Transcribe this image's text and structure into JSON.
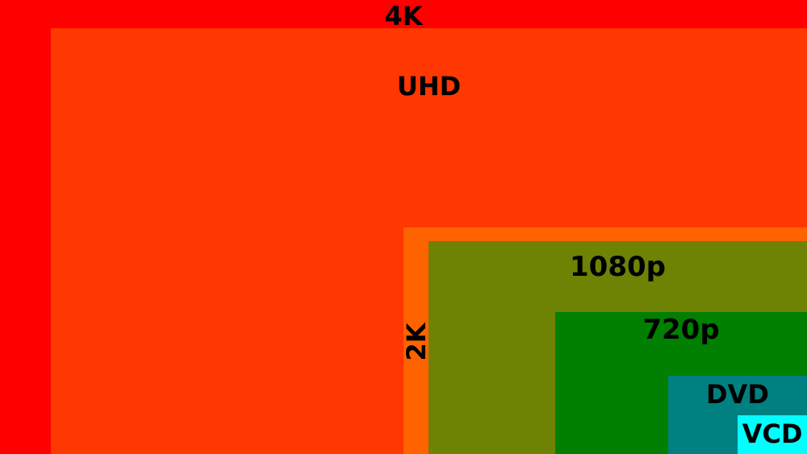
{
  "regions": {
    "r4k": {
      "label": "4K",
      "color": "#ff0000"
    },
    "uhd": {
      "label": "UHD",
      "color": "#ff3700"
    },
    "r2k": {
      "label": "2K",
      "color": "#ff6300"
    },
    "r1080": {
      "label": "1080p",
      "color": "#6e8204"
    },
    "r720": {
      "label": "720p",
      "color": "#007f00"
    },
    "dvd": {
      "label": "DVD",
      "color": "#008080"
    },
    "vcd": {
      "label": "VCD",
      "color": "#00ffff"
    }
  }
}
